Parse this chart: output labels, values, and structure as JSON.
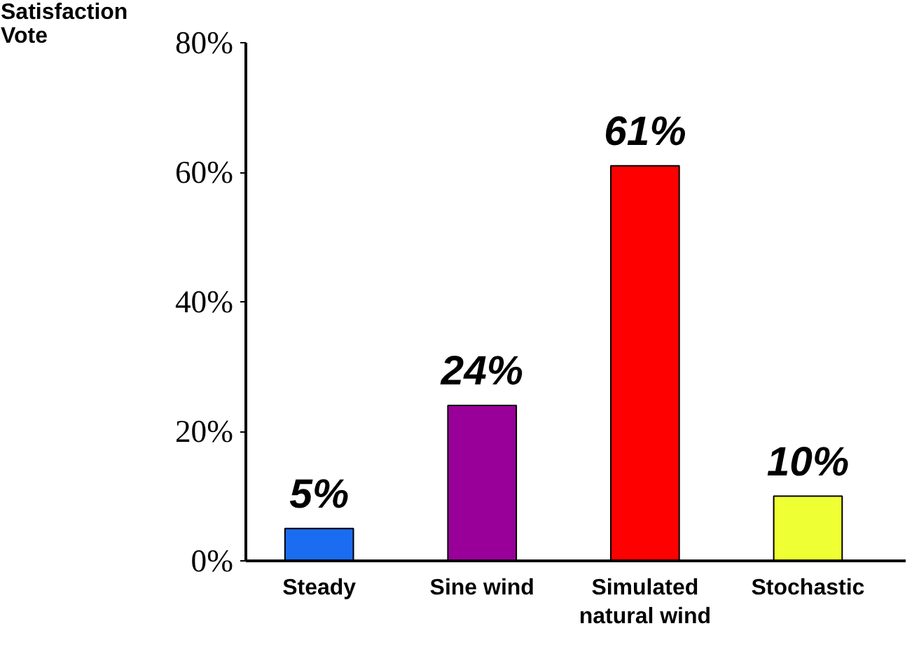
{
  "chart_data": {
    "type": "bar",
    "ylabel": "Satisfaction\nVote",
    "categories": [
      "Steady",
      "Sine wind",
      "Simulated\nnatural wind",
      "Stochastic"
    ],
    "values": [
      5,
      24,
      61,
      10
    ],
    "colors": [
      "#1a6cf0",
      "#990099",
      "#ff0000",
      "#eeff33"
    ],
    "value_labels": [
      "5%",
      "24%",
      "61%",
      "10%"
    ],
    "ylim": [
      0,
      80
    ],
    "yticks": [
      {
        "value": 0,
        "label": "0%"
      },
      {
        "value": 20,
        "label": "20%"
      },
      {
        "value": 40,
        "label": "40%"
      },
      {
        "value": 60,
        "label": "60%"
      },
      {
        "value": 80,
        "label": "80%"
      }
    ],
    "grid": false
  }
}
